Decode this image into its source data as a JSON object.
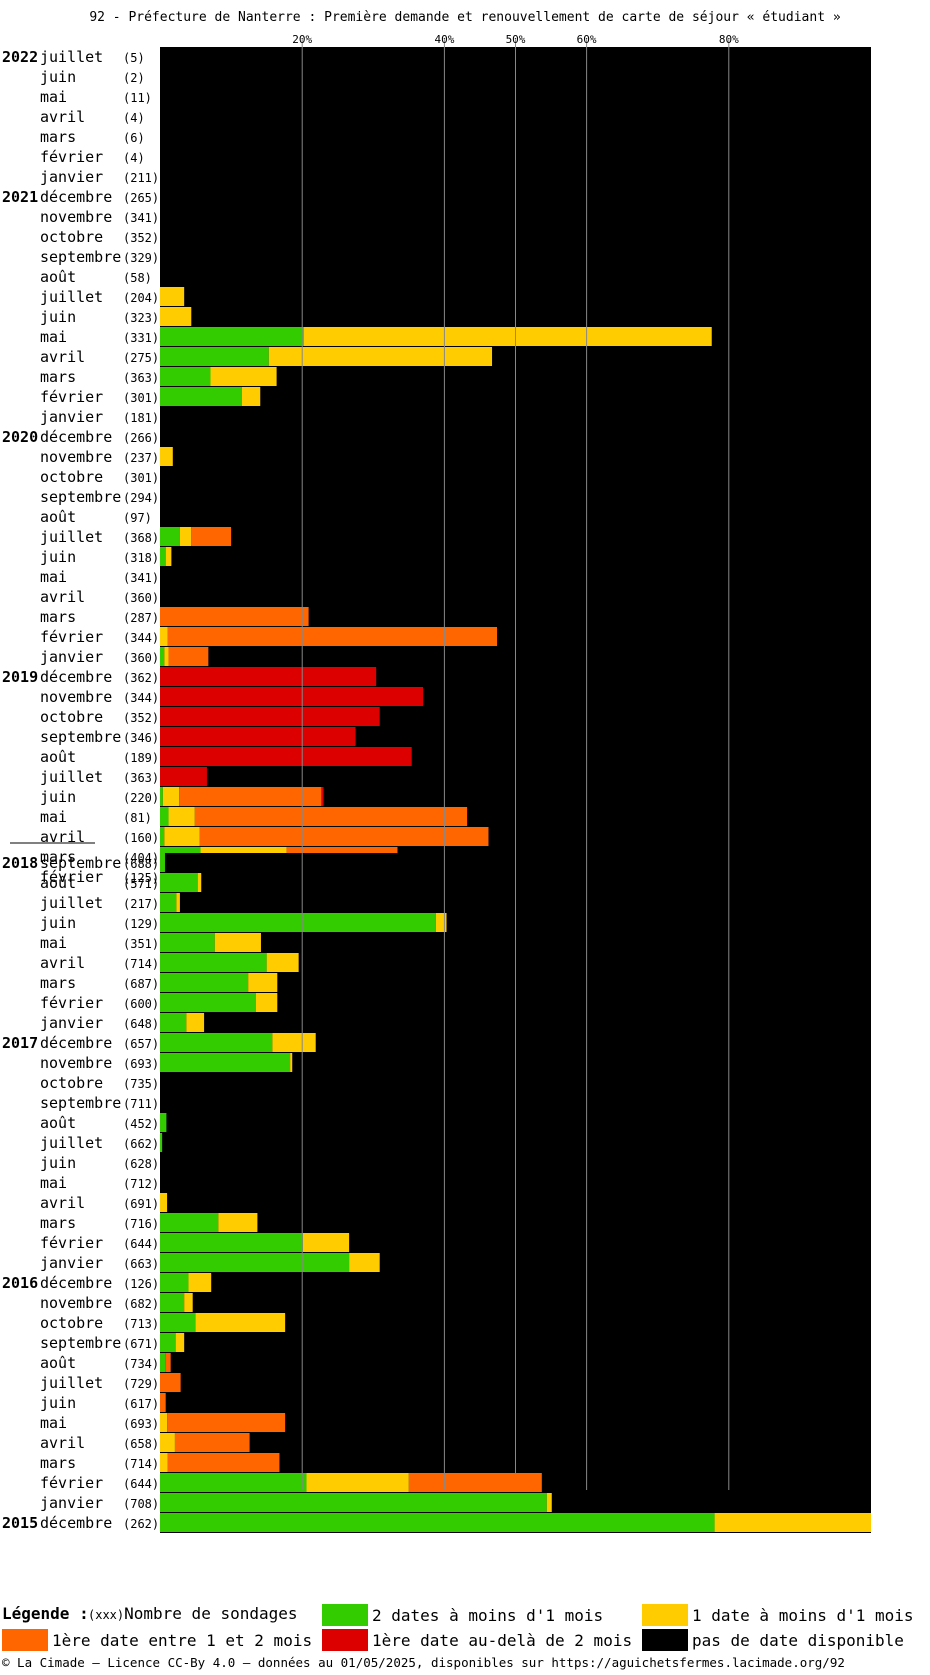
{
  "title": "92 - Préfecture de Nanterre : Première demande et renouvellement de carte de séjour « étudiant »",
  "legend": {
    "title": "Légende :",
    "count_note": "(xxx)",
    "count_label": "Nombre de sondages",
    "items": [
      {
        "label": "2 dates à moins d'1 mois",
        "color": "#33cc00"
      },
      {
        "label": "1 date à moins d'1 mois",
        "color": "#ffcc00"
      },
      {
        "label": "1ère date entre 1 et 2 mois",
        "color": "#ff6600"
      },
      {
        "label": "1ère date au-delà de 2 mois",
        "color": "#dd0000"
      },
      {
        "label": "pas de date disponible",
        "color": "#000000"
      }
    ]
  },
  "footer": "© La Cimade — Licence CC-By 4.0 — données au 01/05/2025, disponibles sur https://aguichetsfermes.lacimade.org/92",
  "chart_data": {
    "type": "bar",
    "orientation": "horizontal-stacked-percent",
    "x_ticks": [
      "20%",
      "40%",
      "50%",
      "60%",
      "80%"
    ],
    "xlim": [
      0,
      100
    ],
    "series_order": [
      "2 dates à moins d'1 mois",
      "1 date à moins d'1 mois",
      "1ère date entre 1 et 2 mois",
      "1ère date au-delà de 2 mois",
      "pas de date disponible"
    ],
    "colors": [
      "#33cc00",
      "#ffcc00",
      "#ff6600",
      "#dd0000",
      "#000000"
    ],
    "panels": [
      {
        "rows": [
          {
            "year": "2022",
            "month": "juillet",
            "count": "(5)",
            "segments": [
              0,
              0,
              0,
              0,
              100
            ]
          },
          {
            "year": "",
            "month": "juin",
            "count": "(2)",
            "segments": [
              0,
              0,
              0,
              0,
              100
            ]
          },
          {
            "year": "",
            "month": "mai",
            "count": "(11)",
            "segments": [
              0,
              0,
              0,
              0,
              100
            ]
          },
          {
            "year": "",
            "month": "avril",
            "count": "(4)",
            "segments": [
              0,
              0,
              0,
              0,
              100
            ]
          },
          {
            "year": "",
            "month": "mars",
            "count": "(6)",
            "segments": [
              0,
              0,
              0,
              0,
              100
            ]
          },
          {
            "year": "",
            "month": "février",
            "count": "(4)",
            "segments": [
              0,
              0,
              0,
              0,
              100
            ]
          },
          {
            "year": "",
            "month": "janvier",
            "count": "(211)",
            "segments": [
              0,
              0,
              0,
              0,
              100
            ]
          },
          {
            "year": "2021",
            "month": "décembre",
            "count": "(265)",
            "segments": [
              0,
              0,
              0,
              0,
              100
            ]
          },
          {
            "year": "",
            "month": "novembre",
            "count": "(341)",
            "segments": [
              0,
              0,
              0,
              0,
              100
            ]
          },
          {
            "year": "",
            "month": "octobre",
            "count": "(352)",
            "segments": [
              0,
              0,
              0,
              0,
              100
            ]
          },
          {
            "year": "",
            "month": "septembre",
            "count": "(329)",
            "segments": [
              0,
              0,
              0,
              0,
              100
            ]
          },
          {
            "year": "",
            "month": "août",
            "count": "(58)",
            "segments": [
              0,
              0,
              0,
              0,
              100
            ]
          },
          {
            "year": "",
            "month": "juillet",
            "count": "(204)",
            "segments": [
              0,
              3.4,
              0,
              0,
              96.6
            ]
          },
          {
            "year": "",
            "month": "juin",
            "count": "(323)",
            "segments": [
              0,
              4.4,
              0,
              0,
              95.6
            ]
          },
          {
            "year": "",
            "month": "mai",
            "count": "(331)",
            "segments": [
              20.2,
              57.4,
              0,
              0,
              22.4
            ]
          },
          {
            "year": "",
            "month": "avril",
            "count": "(275)",
            "segments": [
              15.3,
              31.4,
              0,
              0,
              53.3
            ]
          },
          {
            "year": "",
            "month": "mars",
            "count": "(363)",
            "segments": [
              7.1,
              9.3,
              0,
              0,
              83.6
            ]
          },
          {
            "year": "",
            "month": "février",
            "count": "(301)",
            "segments": [
              11.5,
              2.6,
              0,
              0,
              85.9
            ]
          },
          {
            "year": "",
            "month": "janvier",
            "count": "(181)",
            "segments": [
              0,
              0,
              0,
              0,
              100
            ]
          },
          {
            "year": "2020",
            "month": "décembre",
            "count": "(266)",
            "segments": [
              0,
              0,
              0,
              0,
              100
            ]
          },
          {
            "year": "",
            "month": "novembre",
            "count": "(237)",
            "segments": [
              0,
              1.8,
              0,
              0,
              98.2
            ]
          },
          {
            "year": "",
            "month": "octobre",
            "count": "(301)",
            "segments": [
              0,
              0,
              0,
              0,
              100
            ]
          },
          {
            "year": "",
            "month": "septembre",
            "count": "(294)",
            "segments": [
              0,
              0,
              0,
              0,
              100
            ]
          },
          {
            "year": "",
            "month": "août",
            "count": "(97)",
            "segments": [
              0,
              0,
              0,
              0,
              100
            ]
          },
          {
            "year": "",
            "month": "juillet",
            "count": "(368)",
            "segments": [
              2.8,
              1.6,
              5.6,
              0,
              90
            ]
          },
          {
            "year": "",
            "month": "juin",
            "count": "(318)",
            "segments": [
              0.8,
              0.8,
              0,
              0,
              98.4
            ]
          },
          {
            "year": "",
            "month": "mai",
            "count": "(341)",
            "segments": [
              0,
              0,
              0,
              0,
              100
            ]
          },
          {
            "year": "",
            "month": "avril",
            "count": "(360)",
            "segments": [
              0,
              0,
              0,
              0,
              100
            ]
          },
          {
            "year": "",
            "month": "mars",
            "count": "(287)",
            "segments": [
              0,
              0,
              20.9,
              0,
              79.1
            ]
          },
          {
            "year": "",
            "month": "février",
            "count": "(344)",
            "segments": [
              0,
              1.1,
              46.3,
              0,
              52.6
            ]
          },
          {
            "year": "",
            "month": "janvier",
            "count": "(360)",
            "segments": [
              0.6,
              0.6,
              5.6,
              0,
              93.2
            ]
          },
          {
            "year": "2019",
            "month": "décembre",
            "count": "(362)",
            "segments": [
              0,
              0,
              0,
              30.4,
              69.6
            ]
          },
          {
            "year": "",
            "month": "novembre",
            "count": "(344)",
            "segments": [
              0,
              0,
              0,
              37,
              63
            ]
          },
          {
            "year": "",
            "month": "octobre",
            "count": "(352)",
            "segments": [
              0,
              0,
              0,
              30.9,
              69.1
            ]
          },
          {
            "year": "",
            "month": "septembre",
            "count": "(346)",
            "segments": [
              0,
              0,
              0,
              27.5,
              72.5
            ]
          },
          {
            "year": "",
            "month": "août",
            "count": "(189)",
            "segments": [
              0,
              0,
              0,
              35.4,
              64.6
            ]
          },
          {
            "year": "",
            "month": "juillet",
            "count": "(363)",
            "segments": [
              0,
              0,
              0,
              6.6,
              93.4
            ]
          },
          {
            "year": "",
            "month": "juin",
            "count": "(220)",
            "segments": [
              0.4,
              2.3,
              20,
              0.3,
              77
            ]
          },
          {
            "year": "",
            "month": "mai",
            "count": "(81)",
            "segments": [
              1.2,
              3.7,
              38.3,
              0,
              56.8
            ]
          },
          {
            "year": "",
            "month": "avril",
            "count": "(160)",
            "segments": [
              0.6,
              5,
              40.6,
              0,
              53.8
            ]
          },
          {
            "year": "",
            "month": "mars",
            "count": "(404)",
            "segments": [
              5.7,
              12.1,
              15.6,
              0,
              66.6
            ]
          },
          {
            "year": "",
            "month": "février",
            "count": "(125)",
            "segments": [
              1.6,
              14.4,
              11.2,
              0,
              72.8
            ]
          }
        ]
      },
      {
        "rows": [
          {
            "year": "2018",
            "month": "septembre",
            "count": "(688)",
            "segments": [
              0.7,
              0,
              0,
              0,
              99.3
            ]
          },
          {
            "year": "",
            "month": "août",
            "count": "(571)",
            "segments": [
              5.3,
              0.5,
              0,
              0,
              94.2
            ]
          },
          {
            "year": "",
            "month": "juillet",
            "count": "(217)",
            "segments": [
              2.3,
              0.5,
              0,
              0,
              97.2
            ]
          },
          {
            "year": "",
            "month": "juin",
            "count": "(129)",
            "segments": [
              38.8,
              1.5,
              0,
              0,
              59.7
            ]
          },
          {
            "year": "",
            "month": "mai",
            "count": "(351)",
            "segments": [
              7.7,
              6.5,
              0,
              0,
              85.8
            ]
          },
          {
            "year": "",
            "month": "avril",
            "count": "(714)",
            "segments": [
              15,
              4.5,
              0,
              0,
              80.5
            ]
          },
          {
            "year": "",
            "month": "mars",
            "count": "(687)",
            "segments": [
              12.4,
              4.1,
              0,
              0,
              83.5
            ]
          },
          {
            "year": "",
            "month": "février",
            "count": "(600)",
            "segments": [
              13.5,
              3,
              0,
              0,
              83.5
            ]
          },
          {
            "year": "",
            "month": "janvier",
            "count": "(648)",
            "segments": [
              3.7,
              2.5,
              0,
              0,
              93.8
            ]
          },
          {
            "year": "2017",
            "month": "décembre",
            "count": "(657)",
            "segments": [
              15.8,
              6.1,
              0,
              0,
              78.1
            ]
          },
          {
            "year": "",
            "month": "novembre",
            "count": "(693)",
            "segments": [
              18.3,
              0.3,
              0,
              0,
              81.4
            ]
          },
          {
            "year": "",
            "month": "octobre",
            "count": "(735)",
            "segments": [
              0,
              0,
              0,
              0,
              100
            ]
          },
          {
            "year": "",
            "month": "septembre",
            "count": "(711)",
            "segments": [
              0,
              0,
              0,
              0,
              100
            ]
          },
          {
            "year": "",
            "month": "août",
            "count": "(452)",
            "segments": [
              0.9,
              0,
              0,
              0,
              99.1
            ]
          },
          {
            "year": "",
            "month": "juillet",
            "count": "(662)",
            "segments": [
              0.3,
              0,
              0,
              0,
              99.7
            ]
          },
          {
            "year": "",
            "month": "juin",
            "count": "(628)",
            "segments": [
              0,
              0,
              0,
              0,
              100
            ]
          },
          {
            "year": "",
            "month": "mai",
            "count": "(712)",
            "segments": [
              0,
              0,
              0,
              0,
              100
            ]
          },
          {
            "year": "",
            "month": "avril",
            "count": "(691)",
            "segments": [
              0,
              1,
              0,
              0,
              99
            ]
          },
          {
            "year": "",
            "month": "mars",
            "count": "(716)",
            "segments": [
              8.2,
              5.5,
              0,
              0,
              86.3
            ]
          },
          {
            "year": "",
            "month": "février",
            "count": "(644)",
            "segments": [
              20.1,
              6.5,
              0,
              0,
              73.4
            ]
          },
          {
            "year": "",
            "month": "janvier",
            "count": "(663)",
            "segments": [
              26.6,
              4.3,
              0,
              0,
              69.1
            ]
          },
          {
            "year": "2016",
            "month": "décembre",
            "count": "(126)",
            "segments": [
              4,
              3.2,
              0,
              0,
              92.8
            ]
          },
          {
            "year": "",
            "month": "novembre",
            "count": "(682)",
            "segments": [
              3.4,
              1.2,
              0,
              0,
              95.4
            ]
          },
          {
            "year": "",
            "month": "octobre",
            "count": "(713)",
            "segments": [
              5,
              12.6,
              0,
              0,
              82.4
            ]
          },
          {
            "year": "",
            "month": "septembre",
            "count": "(671)",
            "segments": [
              2.2,
              1.2,
              0,
              0,
              96.6
            ]
          },
          {
            "year": "",
            "month": "août",
            "count": "(734)",
            "segments": [
              0.8,
              0,
              0.7,
              0,
              98.5
            ]
          },
          {
            "year": "",
            "month": "juillet",
            "count": "(729)",
            "segments": [
              0,
              0,
              2.9,
              0,
              97.1
            ]
          },
          {
            "year": "",
            "month": "juin",
            "count": "(617)",
            "segments": [
              0,
              0,
              0.8,
              0,
              99.2
            ]
          },
          {
            "year": "",
            "month": "mai",
            "count": "(693)",
            "segments": [
              0,
              1,
              16.6,
              0,
              82.4
            ]
          },
          {
            "year": "",
            "month": "avril",
            "count": "(658)",
            "segments": [
              0,
              2.1,
              10.5,
              0,
              87.4
            ]
          },
          {
            "year": "",
            "month": "mars",
            "count": "(714)",
            "segments": [
              0,
              1.1,
              15.7,
              0,
              83.2
            ]
          },
          {
            "year": "",
            "month": "février",
            "count": "(644)",
            "segments": [
              20.6,
              14.4,
              18.7,
              0,
              46.3
            ]
          },
          {
            "year": "",
            "month": "janvier",
            "count": "(708)",
            "segments": [
              54.4,
              0.7,
              0,
              0,
              44.9
            ]
          },
          {
            "year": "2015",
            "month": "décembre",
            "count": "(262)",
            "segments": [
              78,
              22,
              0,
              0,
              0
            ]
          }
        ]
      }
    ]
  }
}
